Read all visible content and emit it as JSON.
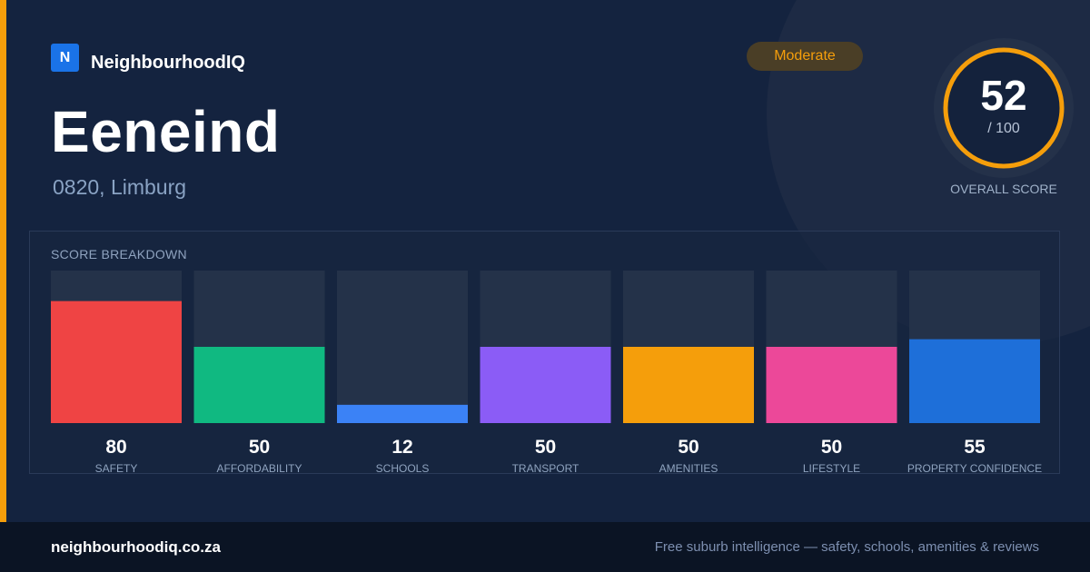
{
  "brand": {
    "logo_letter": "N",
    "name": "NeighbourhoodIQ"
  },
  "suburb": {
    "name": "Eeneind",
    "location": "0820, Limburg"
  },
  "rating_badge": "Moderate",
  "overall": {
    "score": "52",
    "max": "/ 100",
    "caption": "OVERALL SCORE",
    "value": 52,
    "out_of": 100,
    "ring_color": "#f59e0b"
  },
  "breakdown": {
    "title": "SCORE BREAKDOWN"
  },
  "chart_data": {
    "type": "bar",
    "title": "SCORE BREAKDOWN",
    "categories": [
      "SAFETY",
      "AFFORDABILITY",
      "SCHOOLS",
      "TRANSPORT",
      "AMENITIES",
      "LIFESTYLE",
      "PROPERTY CONFIDENCE"
    ],
    "values": [
      80,
      50,
      12,
      50,
      50,
      50,
      55
    ],
    "colors": [
      "#ef4444",
      "#10b981",
      "#3b82f6",
      "#8b5cf6",
      "#f59e0b",
      "#ec4899",
      "#1e6fd9"
    ],
    "ylim": [
      0,
      100
    ],
    "grid": false,
    "xlabel": "",
    "ylabel": ""
  },
  "footer": {
    "url": "neighbourhoodiq.co.za",
    "tagline": "Free suburb intelligence — safety, schools, amenities & reviews"
  }
}
